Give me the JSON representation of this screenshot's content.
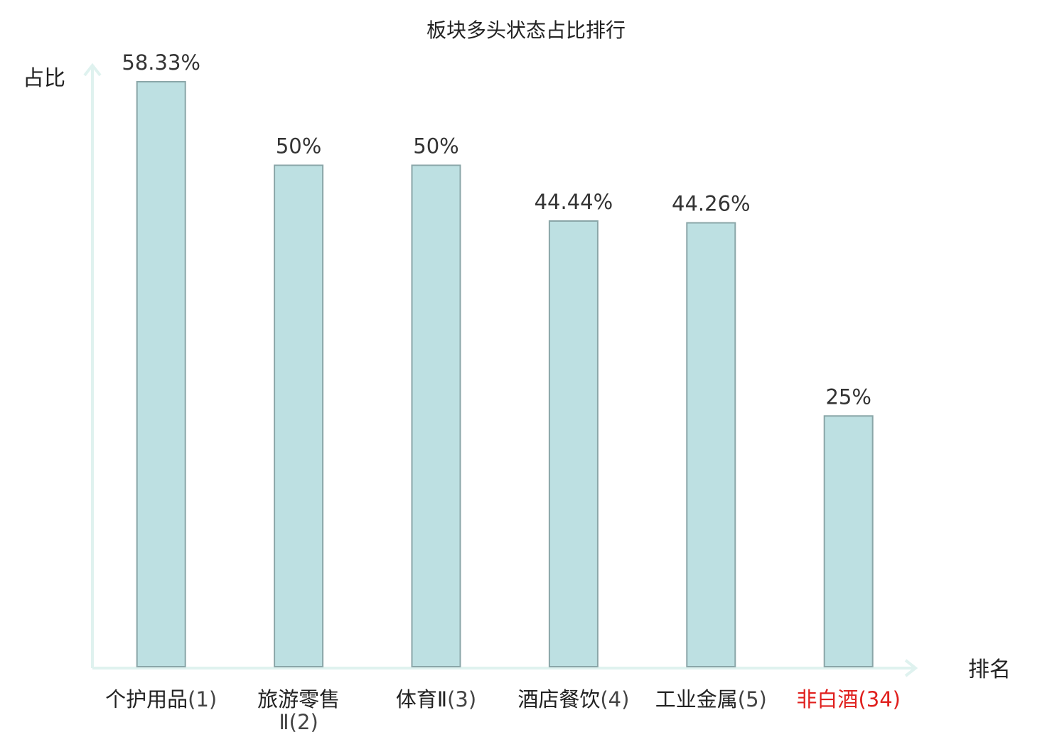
{
  "chart_data": {
    "type": "bar",
    "title": "板块多头状态占比排行",
    "ylabel": "占比",
    "xlabel": "排名",
    "categories": [
      {
        "name": "个护用品",
        "rank": "(1)",
        "highlight": false
      },
      {
        "name": "旅游零售",
        "rank": "Ⅱ(2)",
        "highlight": false
      },
      {
        "name": "体育Ⅱ",
        "rank": "(3)",
        "highlight": false
      },
      {
        "name": "酒店餐饮",
        "rank": "(4)",
        "highlight": false
      },
      {
        "name": "工业金属",
        "rank": "(5)",
        "highlight": false
      },
      {
        "name": "非白酒",
        "rank": "(34)",
        "highlight": true
      }
    ],
    "values": [
      58.33,
      50,
      50,
      44.44,
      44.26,
      25
    ],
    "data_labels": [
      "58.33%",
      "50%",
      "50%",
      "44.44%",
      "44.26%",
      "25%"
    ],
    "ylim": [
      0,
      58.33
    ],
    "grid": false,
    "colors": {
      "bar_fill": "#bde0e2",
      "bar_stroke": "#8aa6a8",
      "axis": "#dff2ef",
      "text": "#333333",
      "highlight": "#e0201e"
    }
  }
}
